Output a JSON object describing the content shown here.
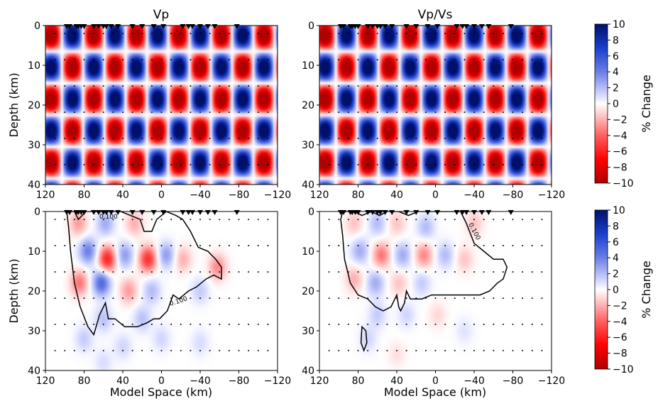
{
  "chart_data": [
    {
      "type": "heatmap",
      "title": "Vp",
      "ylabel": "Depth (km)",
      "xlabel": "",
      "xlim": [
        120,
        -120
      ],
      "ylim": [
        0,
        40
      ],
      "x_ticks": [
        120,
        80,
        40,
        0,
        -40,
        -80,
        -120
      ],
      "y_ticks": [
        0,
        10,
        20,
        30,
        40
      ],
      "checkerboard": {
        "x_period_km": 44,
        "x_phase_km": 92,
        "z_period_km": 16,
        "z_phase_km": 2.5,
        "amplitude_percent": 10
      },
      "stations_x": [
        98,
        95,
        88,
        86,
        83,
        80,
        70,
        65,
        60,
        57,
        52,
        45,
        30,
        20,
        8,
        -2,
        -22,
        -28,
        -32,
        -40,
        -48,
        -55,
        -78
      ]
    },
    {
      "type": "heatmap",
      "title": "Vp/Vs",
      "ylabel": "",
      "xlabel": "",
      "xlim": [
        120,
        -120
      ],
      "ylim": [
        0,
        40
      ],
      "x_ticks": [
        120,
        80,
        40,
        0,
        -40,
        -80,
        -120
      ],
      "y_ticks": [
        0,
        10,
        20,
        30,
        40
      ],
      "checkerboard": {
        "x_period_km": 44,
        "x_phase_km": 92,
        "z_period_km": 16,
        "z_phase_km": 2.5,
        "amplitude_percent": 10
      },
      "stations_x": [
        98,
        95,
        88,
        86,
        83,
        80,
        70,
        65,
        60,
        57,
        52,
        45,
        30,
        20,
        8,
        -2,
        -22,
        -28,
        -32,
        -40,
        -48,
        -55,
        -78
      ]
    },
    {
      "type": "heatmap",
      "title": "",
      "ylabel": "Depth (km)",
      "xlabel": "Model Space (km)",
      "xlim": [
        120,
        -120
      ],
      "ylim": [
        0,
        40
      ],
      "x_ticks": [
        120,
        80,
        40,
        0,
        -40,
        -80,
        -120
      ],
      "y_ticks": [
        0,
        10,
        20,
        30,
        40
      ],
      "stations_x": [
        98,
        95,
        88,
        86,
        83,
        80,
        70,
        65,
        60,
        57,
        52,
        45,
        30,
        20,
        8,
        -2,
        -22,
        -28,
        -32,
        -40,
        -48,
        -55,
        -78
      ],
      "blobs": [
        {
          "x": 86,
          "z": 3,
          "v": -2.5
        },
        {
          "x": 58,
          "z": 3,
          "v": 2.5
        },
        {
          "x": 28,
          "z": 3,
          "v": -2
        },
        {
          "x": 76,
          "z": 10,
          "v": 4
        },
        {
          "x": 56,
          "z": 12,
          "v": -6
        },
        {
          "x": 38,
          "z": 11,
          "v": 3
        },
        {
          "x": 14,
          "z": 12,
          "v": -5.5
        },
        {
          "x": -5,
          "z": 11,
          "v": 3
        },
        {
          "x": -22,
          "z": 12,
          "v": -2
        },
        {
          "x": 85,
          "z": 18,
          "v": -3.5
        },
        {
          "x": 62,
          "z": 18,
          "v": 5
        },
        {
          "x": 34,
          "z": 20,
          "v": -2.5
        },
        {
          "x": 10,
          "z": 20,
          "v": 2
        },
        {
          "x": -58,
          "z": 14,
          "v": -3
        },
        {
          "x": -40,
          "z": 20,
          "v": 1.5
        },
        {
          "x": 60,
          "z": 27,
          "v": 1.8
        },
        {
          "x": 20,
          "z": 27,
          "v": 1.8
        },
        {
          "x": 80,
          "z": 32,
          "v": 1.5
        },
        {
          "x": 40,
          "z": 34,
          "v": 1.2
        },
        {
          "x": 0,
          "z": 32,
          "v": 1.2
        },
        {
          "x": -40,
          "z": 33,
          "v": 1
        },
        {
          "x": 60,
          "z": 38,
          "v": 1
        }
      ],
      "contour_label": "0.100",
      "contour": [
        [
          98,
          0
        ],
        [
          90,
          0
        ],
        [
          86,
          2
        ],
        [
          78,
          0
        ],
        [
          70,
          0
        ],
        [
          60,
          0
        ],
        [
          50,
          0
        ],
        [
          42,
          0
        ],
        [
          32,
          1
        ],
        [
          22,
          2
        ],
        [
          18,
          5
        ],
        [
          10,
          5
        ],
        [
          5,
          2
        ],
        [
          -5,
          0
        ],
        [
          -15,
          1
        ],
        [
          -22,
          2
        ],
        [
          -30,
          5
        ],
        [
          -38,
          9
        ],
        [
          -48,
          10
        ],
        [
          -56,
          12
        ],
        [
          -62,
          14
        ],
        [
          -62,
          17
        ],
        [
          -54,
          16
        ],
        [
          -46,
          17
        ],
        [
          -36,
          19
        ],
        [
          -28,
          20
        ],
        [
          -18,
          22
        ],
        [
          -12,
          21
        ],
        [
          -6,
          25
        ],
        [
          2,
          27
        ],
        [
          8,
          27
        ],
        [
          15,
          28
        ],
        [
          25,
          29
        ],
        [
          38,
          29
        ],
        [
          48,
          27
        ],
        [
          55,
          27
        ],
        [
          58,
          23
        ],
        [
          64,
          26
        ],
        [
          70,
          31
        ],
        [
          76,
          29
        ],
        [
          84,
          24
        ],
        [
          90,
          18
        ],
        [
          94,
          10
        ],
        [
          96,
          4
        ],
        [
          98,
          0
        ]
      ],
      "colorbar": {
        "min": -10,
        "max": 10,
        "label": "% Change",
        "ticks": [
          10,
          8,
          6,
          4,
          2,
          0,
          -2,
          -4,
          -6,
          -8,
          -10
        ]
      }
    },
    {
      "type": "heatmap",
      "title": "",
      "ylabel": "",
      "xlabel": "Model Space (km)",
      "xlim": [
        120,
        -120
      ],
      "ylim": [
        0,
        40
      ],
      "x_ticks": [
        120,
        80,
        40,
        0,
        -40,
        -80,
        -120
      ],
      "y_ticks": [
        0,
        10,
        20,
        30,
        40
      ],
      "stations_x": [
        98,
        95,
        88,
        86,
        83,
        80,
        70,
        65,
        60,
        57,
        52,
        45,
        30,
        20,
        8,
        -2,
        -22,
        -28,
        -32,
        -40,
        -48,
        -55,
        -78
      ],
      "blobs": [
        {
          "x": 84,
          "z": 3,
          "v": -1.5
        },
        {
          "x": 60,
          "z": 3,
          "v": 2
        },
        {
          "x": 40,
          "z": 3,
          "v": -1.5
        },
        {
          "x": 10,
          "z": 4,
          "v": 2
        },
        {
          "x": -40,
          "z": 3,
          "v": -1.5
        },
        {
          "x": 78,
          "z": 10,
          "v": 2.5
        },
        {
          "x": 56,
          "z": 11,
          "v": -3.5
        },
        {
          "x": 34,
          "z": 11,
          "v": 2.5
        },
        {
          "x": 12,
          "z": 11,
          "v": -3
        },
        {
          "x": -10,
          "z": 11,
          "v": 2
        },
        {
          "x": -30,
          "z": 12,
          "v": -1.5
        },
        {
          "x": 84,
          "z": 17,
          "v": -2
        },
        {
          "x": 62,
          "z": 18,
          "v": 2.5
        },
        {
          "x": 38,
          "z": 18,
          "v": -1.5
        },
        {
          "x": 14,
          "z": 18,
          "v": 1.5
        },
        {
          "x": 60,
          "z": 26,
          "v": 1.5
        },
        {
          "x": 30,
          "z": 26,
          "v": 1.2
        },
        {
          "x": -2,
          "z": 26,
          "v": -1
        },
        {
          "x": 70,
          "z": 32,
          "v": 1.2
        },
        {
          "x": 40,
          "z": 36,
          "v": -0.8
        },
        {
          "x": -30,
          "z": 30,
          "v": 0.8
        }
      ],
      "contour_label": "0.100",
      "contour": [
        [
          96,
          0
        ],
        [
          84,
          0
        ],
        [
          76,
          1
        ],
        [
          66,
          0
        ],
        [
          58,
          1
        ],
        [
          50,
          0
        ],
        [
          38,
          0
        ],
        [
          28,
          1
        ],
        [
          18,
          0
        ],
        [
          8,
          0
        ],
        [
          -2,
          0
        ],
        [
          -10,
          0
        ],
        [
          -18,
          0
        ],
        [
          -26,
          0
        ],
        [
          -32,
          3
        ],
        [
          -40,
          8
        ],
        [
          -50,
          10
        ],
        [
          -60,
          12
        ],
        [
          -70,
          12
        ],
        [
          -74,
          14
        ],
        [
          -70,
          17
        ],
        [
          -64,
          18
        ],
        [
          -56,
          20
        ],
        [
          -46,
          21
        ],
        [
          -36,
          21
        ],
        [
          -26,
          21
        ],
        [
          -16,
          21
        ],
        [
          -6,
          21
        ],
        [
          4,
          21
        ],
        [
          14,
          22
        ],
        [
          26,
          22
        ],
        [
          30,
          20
        ],
        [
          32,
          23
        ],
        [
          36,
          25
        ],
        [
          38,
          24
        ],
        [
          40,
          21
        ],
        [
          46,
          24
        ],
        [
          54,
          25
        ],
        [
          62,
          24
        ],
        [
          70,
          22
        ],
        [
          80,
          21
        ],
        [
          88,
          18
        ],
        [
          94,
          12
        ],
        [
          96,
          6
        ],
        [
          98,
          2
        ],
        [
          96,
          0
        ]
      ],
      "contour2": [
        [
          76,
          29
        ],
        [
          72,
          30
        ],
        [
          71,
          33
        ],
        [
          74,
          35
        ],
        [
          77,
          33
        ],
        [
          76,
          29
        ]
      ],
      "colorbar": {
        "min": -10,
        "max": 10,
        "label": "% Change",
        "ticks": [
          10,
          8,
          6,
          4,
          2,
          0,
          -2,
          -4,
          -6,
          -8,
          -10
        ]
      }
    }
  ]
}
